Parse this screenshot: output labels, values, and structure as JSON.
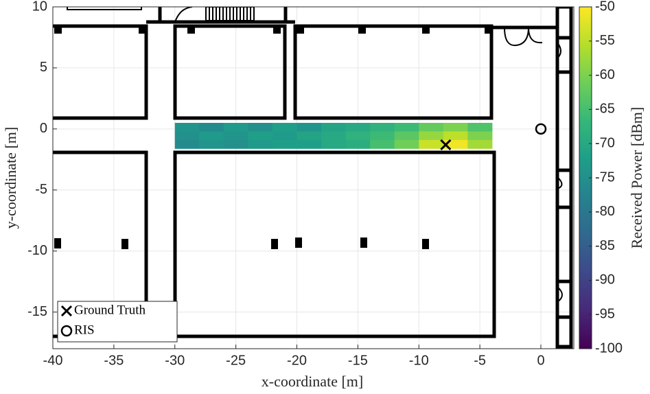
{
  "chart_data": {
    "type": "heatmap",
    "xlabel": "x-coordinate [m]",
    "ylabel": "y-coordinate [m]",
    "xlim": [
      -40,
      2.7
    ],
    "xticks": [
      -40,
      -35,
      -30,
      -25,
      -20,
      -15,
      -10,
      -5,
      0
    ],
    "ylim": [
      -18,
      10
    ],
    "yticks": [
      -15,
      -10,
      -5,
      0,
      5,
      10
    ],
    "grid": true,
    "heatmap": {
      "x": [
        -29,
        -27,
        -25,
        -23,
        -21,
        -19,
        -17,
        -15,
        -13,
        -11,
        -9,
        -7,
        -5
      ],
      "y": [
        0.15,
        -0.55,
        -1.25
      ],
      "z": [
        [
          -74,
          -76,
          -73,
          -75,
          -72,
          -74,
          -71,
          -70,
          -68,
          -66,
          -62,
          -60,
          -64
        ],
        [
          -75,
          -73,
          -74,
          -72,
          -73,
          -71,
          -70,
          -68,
          -66,
          -63,
          -58,
          -55,
          -60
        ],
        [
          -76,
          -74,
          -75,
          -73,
          -72,
          -72,
          -70,
          -69,
          -65,
          -61,
          -54,
          -51,
          -57
        ]
      ]
    },
    "colorbar": {
      "label": "Received Power [dBm]",
      "clim": [
        -100,
        -50
      ],
      "ticks": [
        -100,
        -95,
        -90,
        -85,
        -80,
        -75,
        -70,
        -65,
        -60,
        -55,
        -50
      ],
      "colormap": "viridis"
    },
    "series": [
      {
        "name": "Ground Truth",
        "marker": "x",
        "color": "#000000",
        "x": [
          -7.8
        ],
        "y": [
          -1.3
        ]
      },
      {
        "name": "RIS",
        "marker": "o",
        "color": "#000000",
        "x": [
          0
        ],
        "y": [
          0
        ]
      }
    ],
    "legend": "lower left"
  }
}
